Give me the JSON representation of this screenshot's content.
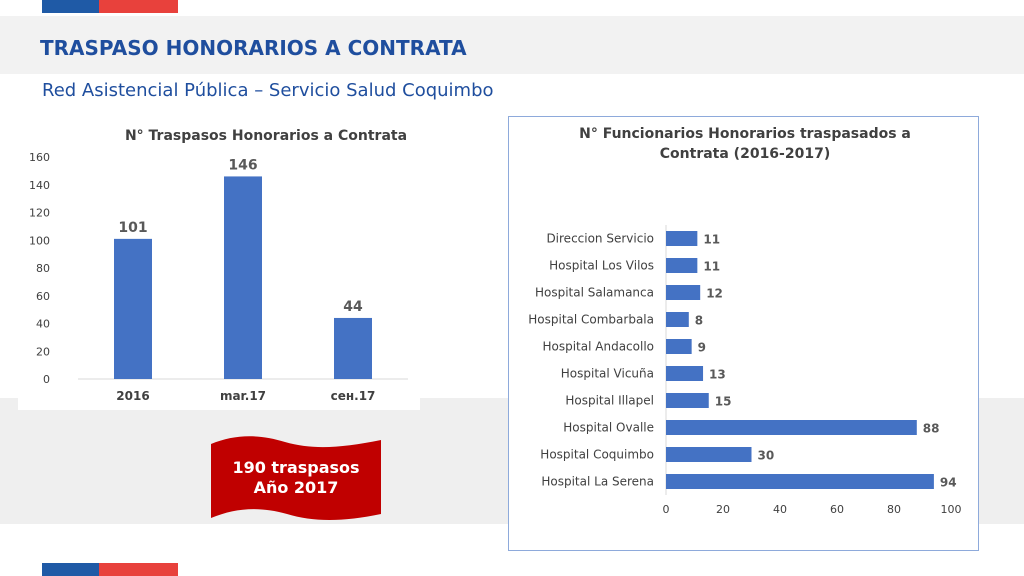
{
  "header": {
    "title": "TRASPASO HONORARIOS A CONTRATA",
    "subtitle": "Red Asistencial Pública – Servicio Salud Coquimbo"
  },
  "colors": {
    "flag_blue": "#1f5aa6",
    "flag_red": "#e8413c",
    "bar": "#4472c4",
    "banner": "#c00000",
    "title": "#1f4e9e"
  },
  "banner": {
    "line1": "190 traspasos",
    "line2": "Año 2017"
  },
  "chart_data": [
    {
      "type": "bar",
      "title": "N° Traspasos Honorarios a Contrata",
      "categories": [
        "2016",
        "mar.17",
        "сен.17"
      ],
      "values": [
        101,
        146,
        44
      ],
      "ylim": [
        0,
        160
      ],
      "yticks": [
        0,
        20,
        40,
        60,
        80,
        100,
        120,
        140,
        160
      ],
      "grid": false
    },
    {
      "type": "bar",
      "orientation": "horizontal",
      "title": "N° Funcionarios Honorarios traspasados a Contrata (2016-2017)",
      "title_lines": [
        "N° Funcionarios Honorarios traspasados a",
        "Contrata (2016-2017)"
      ],
      "categories": [
        "Direccion Servicio",
        "Hospital Los Vilos",
        "Hospital Salamanca",
        "Hospital Combarbala",
        "Hospital Andacollo",
        "Hospital Vicuña",
        "Hospital Illapel",
        "Hospital Ovalle",
        "Hospital Coquimbo",
        "Hospital La Serena"
      ],
      "values": [
        11,
        11,
        12,
        8,
        9,
        13,
        15,
        88,
        30,
        94
      ],
      "xlim": [
        0,
        100
      ],
      "xticks": [
        0,
        20,
        40,
        60,
        80,
        100
      ],
      "grid": false
    }
  ]
}
